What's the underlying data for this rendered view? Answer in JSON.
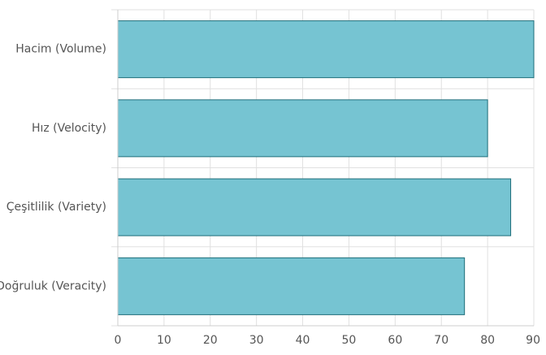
{
  "chart_data": {
    "type": "bar",
    "orientation": "horizontal",
    "title": "",
    "xlabel": "",
    "ylabel": "",
    "categories": [
      "Hacim (Volume)",
      "Hız (Velocity)",
      "Çeşitlilik (Variety)",
      "Doğruluk (Veracity)"
    ],
    "values": [
      90,
      80,
      85,
      75
    ],
    "xlim": [
      0,
      90
    ],
    "x_ticks": [
      "0",
      "10",
      "20",
      "30",
      "40",
      "50",
      "60",
      "70",
      "80",
      "90"
    ],
    "grid": true,
    "legend": "none",
    "colors": {
      "bar_fill": "#76c4d2",
      "bar_stroke": "#1f6e7a",
      "grid": "#e0e0e0",
      "axis": "#cccccc",
      "text": "#555555"
    }
  }
}
